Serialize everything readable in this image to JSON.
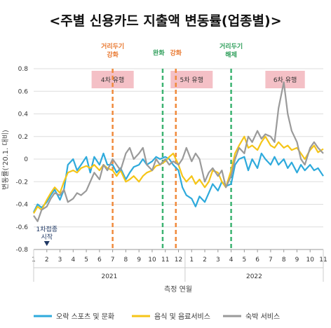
{
  "chart_data": {
    "type": "line",
    "title": "<주별 신용카드 지출액 변동률(업종별)>",
    "xlabel": "측정 연월",
    "ylabel": "변동률(‘20.1. 대비)",
    "ylim": [
      -0.8,
      0.8
    ],
    "yticks": [
      "0.8",
      "0.6",
      "0.4",
      "0.2",
      "0",
      "-0.2",
      "-0.4",
      "-0.6",
      "-0.8"
    ],
    "xlim": [
      1,
      23
    ],
    "xticks": [
      {
        "x": 1,
        "label": "1"
      },
      {
        "x": 2,
        "label": "2"
      },
      {
        "x": 3,
        "label": "3"
      },
      {
        "x": 4,
        "label": "4"
      },
      {
        "x": 5,
        "label": "5"
      },
      {
        "x": 6,
        "label": "6"
      },
      {
        "x": 7,
        "label": "7"
      },
      {
        "x": 8,
        "label": "8"
      },
      {
        "x": 9,
        "label": "9"
      },
      {
        "x": 10,
        "label": "10"
      },
      {
        "x": 11,
        "label": "11"
      },
      {
        "x": 12,
        "label": "12"
      },
      {
        "x": 13,
        "label": "1"
      },
      {
        "x": 14,
        "label": "2"
      },
      {
        "x": 15,
        "label": "3"
      },
      {
        "x": 16,
        "label": "4"
      },
      {
        "x": 17,
        "label": "5"
      },
      {
        "x": 18,
        "label": "6"
      },
      {
        "x": 19,
        "label": "7"
      },
      {
        "x": 20,
        "label": "8"
      },
      {
        "x": 21,
        "label": "9"
      },
      {
        "x": 22,
        "label": "10"
      },
      {
        "x": 23,
        "label": "11"
      }
    ],
    "years": [
      {
        "label": "2021",
        "from": 1,
        "to": 12.5
      },
      {
        "label": "2022",
        "from": 12.5,
        "to": 23
      }
    ],
    "series": [
      {
        "name": "오락 스포츠 및 문화",
        "color": "#2eaadc",
        "points": [
          [
            1,
            -0.47
          ],
          [
            1.3,
            -0.4
          ],
          [
            1.6,
            -0.43
          ],
          [
            2,
            -0.38
          ],
          [
            2.3,
            -0.32
          ],
          [
            2.6,
            -0.27
          ],
          [
            3,
            -0.36
          ],
          [
            3.3,
            -0.27
          ],
          [
            3.6,
            -0.05
          ],
          [
            4,
            0.0
          ],
          [
            4.3,
            -0.1
          ],
          [
            4.6,
            -0.05
          ],
          [
            5,
            0.02
          ],
          [
            5.3,
            -0.12
          ],
          [
            5.6,
            0.02
          ],
          [
            6,
            -0.05
          ],
          [
            6.3,
            0.05
          ],
          [
            6.6,
            -0.05
          ],
          [
            7,
            -0.05
          ],
          [
            7.3,
            -0.12
          ],
          [
            7.6,
            -0.08
          ],
          [
            8,
            -0.18
          ],
          [
            8.3,
            -0.12
          ],
          [
            8.6,
            -0.07
          ],
          [
            9,
            -0.05
          ],
          [
            9.3,
            0.0
          ],
          [
            9.6,
            -0.05
          ],
          [
            10,
            -0.02
          ],
          [
            10.3,
            0.02
          ],
          [
            10.6,
            0.0
          ],
          [
            11,
            0.02
          ],
          [
            11.3,
            0.0
          ],
          [
            11.6,
            -0.05
          ],
          [
            12,
            -0.1
          ],
          [
            12.3,
            -0.25
          ],
          [
            12.6,
            -0.32
          ],
          [
            13,
            -0.35
          ],
          [
            13.3,
            -0.42
          ],
          [
            13.6,
            -0.33
          ],
          [
            14,
            -0.38
          ],
          [
            14.3,
            -0.3
          ],
          [
            14.6,
            -0.22
          ],
          [
            15,
            -0.28
          ],
          [
            15.3,
            -0.2
          ],
          [
            15.6,
            -0.24
          ],
          [
            16,
            -0.22
          ],
          [
            16.3,
            -0.05
          ],
          [
            16.6,
            0.0
          ],
          [
            17,
            0.02
          ],
          [
            17.3,
            -0.1
          ],
          [
            17.6,
            0.0
          ],
          [
            18,
            -0.08
          ],
          [
            18.3,
            0.05
          ],
          [
            18.6,
            0.0
          ],
          [
            19,
            -0.05
          ],
          [
            19.3,
            0.02
          ],
          [
            19.6,
            -0.05
          ],
          [
            20,
            0.0
          ],
          [
            20.3,
            -0.08
          ],
          [
            20.6,
            -0.03
          ],
          [
            21,
            -0.12
          ],
          [
            21.3,
            -0.05
          ],
          [
            21.6,
            -0.1
          ],
          [
            22,
            -0.05
          ],
          [
            22.3,
            -0.1
          ],
          [
            22.6,
            -0.08
          ],
          [
            23,
            -0.15
          ]
        ]
      },
      {
        "name": "음식 및 음료서비스",
        "color": "#f5c518",
        "points": [
          [
            1,
            -0.48
          ],
          [
            1.3,
            -0.42
          ],
          [
            1.6,
            -0.45
          ],
          [
            2,
            -0.36
          ],
          [
            2.3,
            -0.3
          ],
          [
            2.6,
            -0.25
          ],
          [
            3,
            -0.3
          ],
          [
            3.3,
            -0.2
          ],
          [
            3.6,
            -0.12
          ],
          [
            4,
            -0.1
          ],
          [
            4.3,
            -0.12
          ],
          [
            4.6,
            -0.08
          ],
          [
            5,
            -0.06
          ],
          [
            5.3,
            -0.08
          ],
          [
            5.6,
            -0.05
          ],
          [
            6,
            -0.1
          ],
          [
            6.3,
            -0.05
          ],
          [
            6.6,
            -0.08
          ],
          [
            7,
            -0.1
          ],
          [
            7.3,
            -0.15
          ],
          [
            7.6,
            -0.1
          ],
          [
            8,
            -0.2
          ],
          [
            8.3,
            -0.18
          ],
          [
            8.6,
            -0.15
          ],
          [
            9,
            -0.2
          ],
          [
            9.3,
            -0.15
          ],
          [
            9.6,
            -0.12
          ],
          [
            10,
            -0.1
          ],
          [
            10.3,
            -0.06
          ],
          [
            10.6,
            -0.05
          ],
          [
            11,
            -0.02
          ],
          [
            11.3,
            0.02
          ],
          [
            11.6,
            0.05
          ],
          [
            12,
            -0.05
          ],
          [
            12.3,
            -0.15
          ],
          [
            12.6,
            -0.2
          ],
          [
            13,
            -0.15
          ],
          [
            13.3,
            -0.22
          ],
          [
            13.6,
            -0.18
          ],
          [
            14,
            -0.25
          ],
          [
            14.3,
            -0.2
          ],
          [
            14.6,
            -0.1
          ],
          [
            15,
            -0.12
          ],
          [
            15.3,
            -0.2
          ],
          [
            15.6,
            -0.25
          ],
          [
            16,
            -0.1
          ],
          [
            16.3,
            0.05
          ],
          [
            16.6,
            0.12
          ],
          [
            17,
            0.2
          ],
          [
            17.3,
            0.1
          ],
          [
            17.6,
            0.12
          ],
          [
            18,
            0.08
          ],
          [
            18.3,
            0.15
          ],
          [
            18.6,
            0.2
          ],
          [
            19,
            0.12
          ],
          [
            19.3,
            0.1
          ],
          [
            19.6,
            0.15
          ],
          [
            20,
            0.1
          ],
          [
            20.3,
            0.12
          ],
          [
            20.6,
            0.08
          ],
          [
            21,
            0.1
          ],
          [
            21.3,
            0.05
          ],
          [
            21.6,
            0.0
          ],
          [
            22,
            0.08
          ],
          [
            22.3,
            0.12
          ],
          [
            22.6,
            0.06
          ],
          [
            23,
            0.09
          ]
        ]
      },
      {
        "name": "숙박 서비스",
        "color": "#9a9a9a",
        "points": [
          [
            1,
            -0.5
          ],
          [
            1.3,
            -0.55
          ],
          [
            1.6,
            -0.45
          ],
          [
            2,
            -0.42
          ],
          [
            2.3,
            -0.35
          ],
          [
            2.6,
            -0.3
          ],
          [
            3,
            -0.32
          ],
          [
            3.3,
            -0.27
          ],
          [
            3.6,
            -0.38
          ],
          [
            4,
            -0.35
          ],
          [
            4.3,
            -0.3
          ],
          [
            4.6,
            -0.32
          ],
          [
            5,
            -0.28
          ],
          [
            5.3,
            -0.2
          ],
          [
            5.6,
            -0.12
          ],
          [
            6,
            -0.18
          ],
          [
            6.3,
            -0.05
          ],
          [
            6.6,
            -0.1
          ],
          [
            7,
            0.0
          ],
          [
            7.3,
            -0.05
          ],
          [
            7.6,
            -0.1
          ],
          [
            8,
            0.05
          ],
          [
            8.3,
            0.1
          ],
          [
            8.6,
            0.0
          ],
          [
            9,
            0.05
          ],
          [
            9.3,
            0.1
          ],
          [
            9.6,
            -0.05
          ],
          [
            10,
            -0.1
          ],
          [
            10.3,
            0.0
          ],
          [
            10.6,
            -0.05
          ],
          [
            11,
            0.0
          ],
          [
            11.3,
            -0.05
          ],
          [
            11.6,
            -0.02
          ],
          [
            12,
            -0.05
          ],
          [
            12.3,
            0.0
          ],
          [
            12.6,
            0.1
          ],
          [
            13,
            -0.02
          ],
          [
            13.3,
            0.05
          ],
          [
            13.6,
            0.0
          ],
          [
            14,
            -0.2
          ],
          [
            14.3,
            -0.12
          ],
          [
            14.6,
            -0.08
          ],
          [
            15,
            -0.15
          ],
          [
            15.3,
            -0.1
          ],
          [
            15.6,
            -0.25
          ],
          [
            16,
            -0.15
          ],
          [
            16.3,
            0.0
          ],
          [
            16.6,
            0.1
          ],
          [
            17,
            0.05
          ],
          [
            17.3,
            0.2
          ],
          [
            17.6,
            0.15
          ],
          [
            18,
            0.25
          ],
          [
            18.3,
            0.18
          ],
          [
            18.6,
            0.22
          ],
          [
            19,
            0.2
          ],
          [
            19.3,
            0.15
          ],
          [
            19.6,
            0.45
          ],
          [
            20,
            0.68
          ],
          [
            20.3,
            0.4
          ],
          [
            20.6,
            0.25
          ],
          [
            21,
            0.15
          ],
          [
            21.3,
            0.0
          ],
          [
            21.6,
            -0.05
          ],
          [
            22,
            0.1
          ],
          [
            22.3,
            0.15
          ],
          [
            22.6,
            0.1
          ],
          [
            23,
            0.05
          ]
        ]
      }
    ],
    "vlines": [
      {
        "x": 7.0,
        "color": "#f08a3c"
      },
      {
        "x": 10.8,
        "color": "#3cb371"
      },
      {
        "x": 11.8,
        "color": "#f08a3c"
      },
      {
        "x": 16.0,
        "color": "#3cb371"
      }
    ],
    "top_annotations": [
      {
        "x": 7.0,
        "y": 0.98,
        "lines": [
          "거리두기",
          "강화"
        ],
        "color": "#e8772e"
      },
      {
        "x": 10.5,
        "y": 0.92,
        "lines": [
          "완화"
        ],
        "color": "#2e9e5a"
      },
      {
        "x": 11.8,
        "y": 0.92,
        "lines": [
          "강화"
        ],
        "color": "#e8772e"
      },
      {
        "x": 16.0,
        "y": 0.98,
        "lines": [
          "거리두기",
          "해제"
        ],
        "color": "#2e9e5a"
      }
    ],
    "wave_labels": [
      {
        "from": 5.4,
        "to": 8.6,
        "label": "4차 유행"
      },
      {
        "from": 11.4,
        "to": 14.6,
        "label": "5차 유행"
      },
      {
        "from": 18.6,
        "to": 21.6,
        "label": "6차 유행"
      }
    ],
    "bottom_annotation": {
      "x": 2.0,
      "lines": [
        "1차접종",
        "시작"
      ]
    },
    "legend": {
      "position": "bottom"
    }
  }
}
